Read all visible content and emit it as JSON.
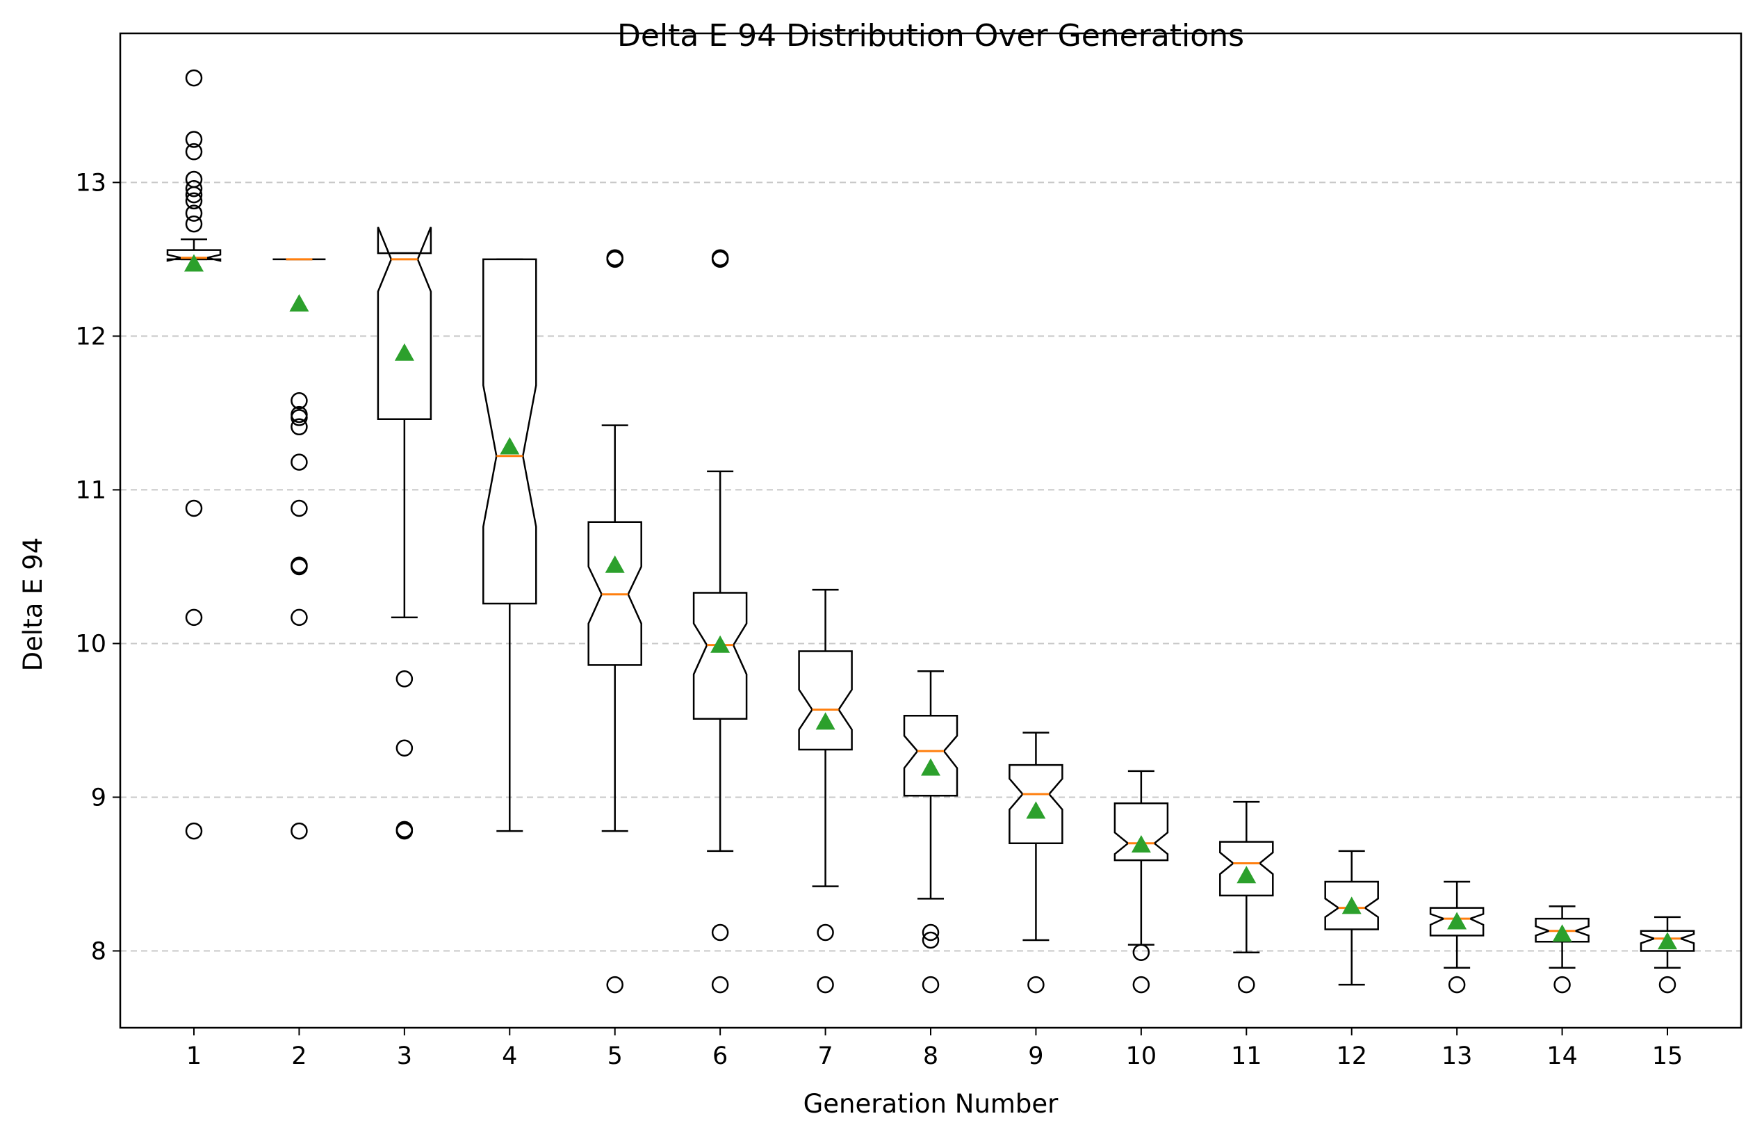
{
  "chart_data": {
    "type": "box",
    "title": "Delta E 94 Distribution Over Generations",
    "xlabel": "Generation Number",
    "ylabel": "Delta E 94",
    "ylim": [
      7.5,
      13.97
    ],
    "yticks": [
      8,
      9,
      10,
      11,
      12,
      13
    ],
    "grid": "y-dashed",
    "notched": true,
    "show_means": true,
    "colors": {
      "box": "#000000",
      "median": "#ff7f0e",
      "mean_marker": "#2ca02c",
      "grid": "#c8c8c8"
    },
    "categories": [
      "1",
      "2",
      "3",
      "4",
      "5",
      "6",
      "7",
      "8",
      "9",
      "10",
      "11",
      "12",
      "13",
      "14",
      "15"
    ],
    "boxes": [
      {
        "q1": 12.5,
        "med": 12.51,
        "q3": 12.56,
        "notch": [
          12.49,
          12.53
        ],
        "wlo": 12.5,
        "whi": 12.63,
        "mean": 12.47,
        "fliers": [
          13.68,
          13.28,
          13.2,
          13.02,
          12.96,
          12.92,
          12.88,
          12.8,
          12.73,
          10.88,
          10.17,
          8.78
        ]
      },
      {
        "q1": 12.5,
        "med": 12.5,
        "q3": 12.5,
        "notch": [
          12.5,
          12.5
        ],
        "wlo": 12.5,
        "whi": 12.5,
        "mean": 12.21,
        "fliers": [
          11.58,
          11.49,
          11.47,
          11.41,
          11.18,
          10.88,
          10.51,
          10.5,
          10.17,
          8.78
        ]
      },
      {
        "q1": 11.46,
        "med": 12.5,
        "q3": 12.54,
        "notch": [
          12.29,
          12.71
        ],
        "wlo": 10.17,
        "whi": 12.54,
        "mean": 11.89,
        "fliers": [
          9.77,
          9.32,
          8.79,
          8.78
        ]
      },
      {
        "q1": 10.26,
        "med": 11.22,
        "q3": 12.5,
        "notch": [
          10.76,
          11.68
        ],
        "wlo": 8.78,
        "whi": 12.5,
        "mean": 11.28,
        "fliers": []
      },
      {
        "q1": 9.86,
        "med": 10.32,
        "q3": 10.79,
        "notch": [
          10.13,
          10.5
        ],
        "wlo": 8.78,
        "whi": 11.42,
        "mean": 10.51,
        "fliers": [
          12.5,
          12.51,
          7.78
        ]
      },
      {
        "q1": 9.51,
        "med": 9.99,
        "q3": 10.33,
        "notch": [
          9.8,
          10.13
        ],
        "wlo": 8.65,
        "whi": 11.12,
        "mean": 9.99,
        "fliers": [
          12.5,
          12.51,
          8.12,
          7.78
        ]
      },
      {
        "q1": 9.31,
        "med": 9.57,
        "q3": 9.95,
        "notch": [
          9.44,
          9.7
        ],
        "wlo": 8.42,
        "whi": 10.35,
        "mean": 9.49,
        "fliers": [
          8.12,
          7.78
        ]
      },
      {
        "q1": 9.01,
        "med": 9.3,
        "q3": 9.53,
        "notch": [
          9.19,
          9.4
        ],
        "wlo": 8.34,
        "whi": 9.82,
        "mean": 9.19,
        "fliers": [
          8.12,
          8.07,
          7.78
        ]
      },
      {
        "q1": 8.7,
        "med": 9.02,
        "q3": 9.21,
        "notch": [
          8.92,
          9.12
        ],
        "wlo": 8.07,
        "whi": 9.42,
        "mean": 8.91,
        "fliers": [
          7.78
        ]
      },
      {
        "q1": 8.59,
        "med": 8.7,
        "q3": 8.96,
        "notch": [
          8.63,
          8.77
        ],
        "wlo": 8.04,
        "whi": 9.17,
        "mean": 8.69,
        "fliers": [
          7.99,
          7.78
        ]
      },
      {
        "q1": 8.36,
        "med": 8.57,
        "q3": 8.71,
        "notch": [
          8.5,
          8.64
        ],
        "wlo": 7.99,
        "whi": 8.97,
        "mean": 8.49,
        "fliers": [
          7.78
        ]
      },
      {
        "q1": 8.14,
        "med": 8.28,
        "q3": 8.45,
        "notch": [
          8.22,
          8.34
        ],
        "wlo": 7.78,
        "whi": 8.65,
        "mean": 8.29,
        "fliers": []
      },
      {
        "q1": 8.1,
        "med": 8.21,
        "q3": 8.28,
        "notch": [
          8.17,
          8.24
        ],
        "wlo": 7.89,
        "whi": 8.45,
        "mean": 8.19,
        "fliers": [
          7.78
        ]
      },
      {
        "q1": 8.06,
        "med": 8.13,
        "q3": 8.21,
        "notch": [
          8.1,
          8.16
        ],
        "wlo": 7.89,
        "whi": 8.29,
        "mean": 8.11,
        "fliers": [
          7.78
        ]
      },
      {
        "q1": 8.0,
        "med": 8.08,
        "q3": 8.13,
        "notch": [
          8.05,
          8.11
        ],
        "wlo": 7.89,
        "whi": 8.22,
        "mean": 8.06,
        "fliers": [
          7.78
        ]
      }
    ]
  }
}
